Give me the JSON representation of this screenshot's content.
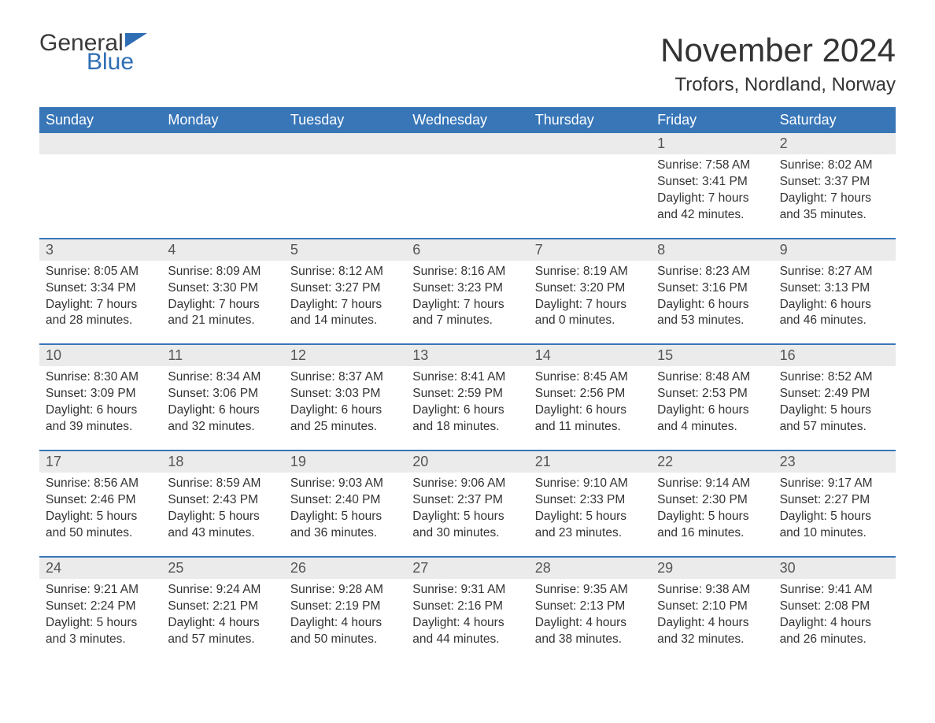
{
  "logo": {
    "text1": "General",
    "text2": "Blue",
    "flag_color": "#2f6eb5"
  },
  "title": "November 2024",
  "location": "Trofors, Nordland, Norway",
  "colors": {
    "header_bg": "#3876b8",
    "header_text": "#ffffff",
    "daynum_bg": "#ebebeb",
    "week_border": "#3876b8",
    "text": "#333333"
  },
  "day_names": [
    "Sunday",
    "Monday",
    "Tuesday",
    "Wednesday",
    "Thursday",
    "Friday",
    "Saturday"
  ],
  "labels": {
    "sunrise": "Sunrise:",
    "sunset": "Sunset:",
    "daylight": "Daylight:"
  },
  "weeks": [
    [
      {
        "empty": true
      },
      {
        "empty": true
      },
      {
        "empty": true
      },
      {
        "empty": true
      },
      {
        "empty": true
      },
      {
        "n": "1",
        "sunrise": "7:58 AM",
        "sunset": "3:41 PM",
        "daylight": "7 hours and 42 minutes."
      },
      {
        "n": "2",
        "sunrise": "8:02 AM",
        "sunset": "3:37 PM",
        "daylight": "7 hours and 35 minutes."
      }
    ],
    [
      {
        "n": "3",
        "sunrise": "8:05 AM",
        "sunset": "3:34 PM",
        "daylight": "7 hours and 28 minutes."
      },
      {
        "n": "4",
        "sunrise": "8:09 AM",
        "sunset": "3:30 PM",
        "daylight": "7 hours and 21 minutes."
      },
      {
        "n": "5",
        "sunrise": "8:12 AM",
        "sunset": "3:27 PM",
        "daylight": "7 hours and 14 minutes."
      },
      {
        "n": "6",
        "sunrise": "8:16 AM",
        "sunset": "3:23 PM",
        "daylight": "7 hours and 7 minutes."
      },
      {
        "n": "7",
        "sunrise": "8:19 AM",
        "sunset": "3:20 PM",
        "daylight": "7 hours and 0 minutes."
      },
      {
        "n": "8",
        "sunrise": "8:23 AM",
        "sunset": "3:16 PM",
        "daylight": "6 hours and 53 minutes."
      },
      {
        "n": "9",
        "sunrise": "8:27 AM",
        "sunset": "3:13 PM",
        "daylight": "6 hours and 46 minutes."
      }
    ],
    [
      {
        "n": "10",
        "sunrise": "8:30 AM",
        "sunset": "3:09 PM",
        "daylight": "6 hours and 39 minutes."
      },
      {
        "n": "11",
        "sunrise": "8:34 AM",
        "sunset": "3:06 PM",
        "daylight": "6 hours and 32 minutes."
      },
      {
        "n": "12",
        "sunrise": "8:37 AM",
        "sunset": "3:03 PM",
        "daylight": "6 hours and 25 minutes."
      },
      {
        "n": "13",
        "sunrise": "8:41 AM",
        "sunset": "2:59 PM",
        "daylight": "6 hours and 18 minutes."
      },
      {
        "n": "14",
        "sunrise": "8:45 AM",
        "sunset": "2:56 PM",
        "daylight": "6 hours and 11 minutes."
      },
      {
        "n": "15",
        "sunrise": "8:48 AM",
        "sunset": "2:53 PM",
        "daylight": "6 hours and 4 minutes."
      },
      {
        "n": "16",
        "sunrise": "8:52 AM",
        "sunset": "2:49 PM",
        "daylight": "5 hours and 57 minutes."
      }
    ],
    [
      {
        "n": "17",
        "sunrise": "8:56 AM",
        "sunset": "2:46 PM",
        "daylight": "5 hours and 50 minutes."
      },
      {
        "n": "18",
        "sunrise": "8:59 AM",
        "sunset": "2:43 PM",
        "daylight": "5 hours and 43 minutes."
      },
      {
        "n": "19",
        "sunrise": "9:03 AM",
        "sunset": "2:40 PM",
        "daylight": "5 hours and 36 minutes."
      },
      {
        "n": "20",
        "sunrise": "9:06 AM",
        "sunset": "2:37 PM",
        "daylight": "5 hours and 30 minutes."
      },
      {
        "n": "21",
        "sunrise": "9:10 AM",
        "sunset": "2:33 PM",
        "daylight": "5 hours and 23 minutes."
      },
      {
        "n": "22",
        "sunrise": "9:14 AM",
        "sunset": "2:30 PM",
        "daylight": "5 hours and 16 minutes."
      },
      {
        "n": "23",
        "sunrise": "9:17 AM",
        "sunset": "2:27 PM",
        "daylight": "5 hours and 10 minutes."
      }
    ],
    [
      {
        "n": "24",
        "sunrise": "9:21 AM",
        "sunset": "2:24 PM",
        "daylight": "5 hours and 3 minutes."
      },
      {
        "n": "25",
        "sunrise": "9:24 AM",
        "sunset": "2:21 PM",
        "daylight": "4 hours and 57 minutes."
      },
      {
        "n": "26",
        "sunrise": "9:28 AM",
        "sunset": "2:19 PM",
        "daylight": "4 hours and 50 minutes."
      },
      {
        "n": "27",
        "sunrise": "9:31 AM",
        "sunset": "2:16 PM",
        "daylight": "4 hours and 44 minutes."
      },
      {
        "n": "28",
        "sunrise": "9:35 AM",
        "sunset": "2:13 PM",
        "daylight": "4 hours and 38 minutes."
      },
      {
        "n": "29",
        "sunrise": "9:38 AM",
        "sunset": "2:10 PM",
        "daylight": "4 hours and 32 minutes."
      },
      {
        "n": "30",
        "sunrise": "9:41 AM",
        "sunset": "2:08 PM",
        "daylight": "4 hours and 26 minutes."
      }
    ]
  ]
}
